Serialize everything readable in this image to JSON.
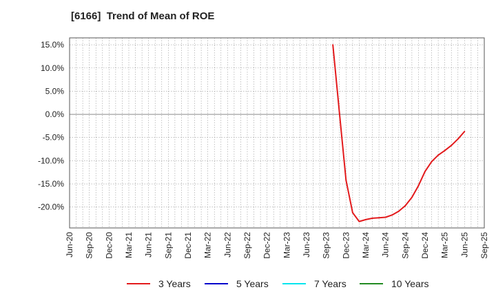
{
  "chart_data": {
    "type": "line",
    "title": "[6166]  Trend of Mean of ROE",
    "xlabel": "",
    "ylabel": "",
    "y_unit": "%",
    "ylim": [
      -24.5,
      16.5
    ],
    "y_ticks": [
      15.0,
      10.0,
      5.0,
      0.0,
      -5.0,
      -10.0,
      -15.0,
      -20.0
    ],
    "y_tick_labels": [
      "15.0%",
      "10.0%",
      "5.0%",
      "0.0%",
      "-5.0%",
      "-10.0%",
      "-15.0%",
      "-20.0%"
    ],
    "x_tick_labels": [
      "Jun-20",
      "Sep-20",
      "Dec-20",
      "Mar-21",
      "Jun-21",
      "Sep-21",
      "Dec-21",
      "Mar-22",
      "Jun-22",
      "Sep-22",
      "Dec-22",
      "Mar-23",
      "Jun-23",
      "Sep-23",
      "Dec-23",
      "Mar-24",
      "Jun-24",
      "Sep-24",
      "Dec-24",
      "Mar-25",
      "Jun-25",
      "Sep-25"
    ],
    "grid": true,
    "legend_position": "bottom",
    "series": [
      {
        "name": "3 Years",
        "color": "#e31a1c",
        "points": [
          {
            "x": "Oct-23",
            "y": 15.0
          },
          {
            "x": "Nov-23",
            "y": 0.2
          },
          {
            "x": "Dec-23",
            "y": -14.2
          },
          {
            "x": "Jan-24",
            "y": -21.2
          },
          {
            "x": "Feb-24",
            "y": -23.1
          },
          {
            "x": "Mar-24",
            "y": -22.7
          },
          {
            "x": "Apr-24",
            "y": -22.4
          },
          {
            "x": "May-24",
            "y": -22.3
          },
          {
            "x": "Jun-24",
            "y": -22.2
          },
          {
            "x": "Jul-24",
            "y": -21.7
          },
          {
            "x": "Aug-24",
            "y": -20.9
          },
          {
            "x": "Sep-24",
            "y": -19.7
          },
          {
            "x": "Oct-24",
            "y": -17.9
          },
          {
            "x": "Nov-24",
            "y": -15.4
          },
          {
            "x": "Dec-24",
            "y": -12.3
          },
          {
            "x": "Jan-25",
            "y": -10.2
          },
          {
            "x": "Feb-25",
            "y": -8.8
          },
          {
            "x": "Mar-25",
            "y": -7.8
          },
          {
            "x": "Apr-25",
            "y": -6.7
          },
          {
            "x": "May-25",
            "y": -5.3
          },
          {
            "x": "Jun-25",
            "y": -3.7
          }
        ]
      },
      {
        "name": "5 Years",
        "color": "#0000cc",
        "points": []
      },
      {
        "name": "7 Years",
        "color": "#00e5ee",
        "points": []
      },
      {
        "name": "10 Years",
        "color": "#228b22",
        "points": []
      }
    ]
  }
}
